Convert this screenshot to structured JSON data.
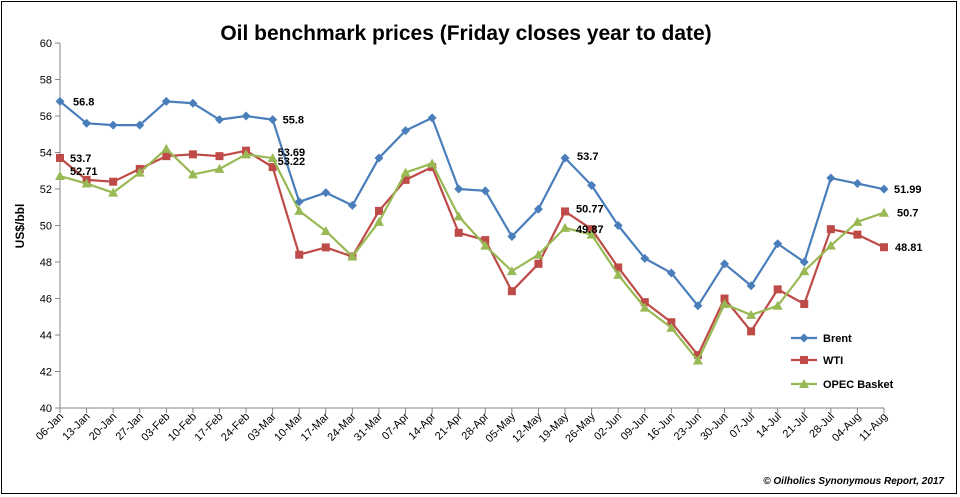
{
  "chart_data": {
    "type": "line",
    "title": "Oil benchmark prices (Friday closes year to date)",
    "ylabel": "US$/bbl",
    "xlabel": "",
    "ylim": [
      40,
      60
    ],
    "yticks": [
      40,
      42,
      44,
      46,
      48,
      50,
      52,
      54,
      56,
      58,
      60
    ],
    "grid": false,
    "legend_position": "right",
    "credit": "© Oilholics Synonymous Report, 2017",
    "categories": [
      "06-Jan",
      "13-Jan",
      "20-Jan",
      "27-Jan",
      "03-Feb",
      "10-Feb",
      "17-Feb",
      "24-Feb",
      "03-Mar",
      "10-Mar",
      "17-Mar",
      "24-Mar",
      "31-Mar",
      "07-Apr",
      "14-Apr",
      "21-Apr",
      "28-Apr",
      "05-May",
      "12-May",
      "19-May",
      "26-May",
      "02-Jun",
      "09-Jun",
      "16-Jun",
      "23-Jun",
      "30-Jun",
      "07-Jul",
      "14-Jul",
      "21-Jul",
      "28-Jul",
      "04-Aug",
      "11-Aug"
    ],
    "series": [
      {
        "name": "Brent",
        "color": "#4a7ebb",
        "marker": "diamond",
        "values": [
          56.8,
          55.6,
          55.5,
          55.5,
          56.8,
          56.7,
          55.8,
          56.0,
          55.8,
          51.3,
          51.8,
          51.1,
          53.7,
          55.2,
          55.9,
          52.0,
          51.9,
          49.4,
          50.9,
          53.7,
          52.2,
          50.0,
          48.2,
          47.4,
          45.6,
          47.9,
          46.7,
          49.0,
          48.0,
          52.6,
          52.3,
          51.99
        ],
        "labels": [
          {
            "index": 0,
            "text": "56.8"
          },
          {
            "index": 8,
            "text": "55.8"
          },
          {
            "index": 19,
            "text": "53.7"
          },
          {
            "index": 31,
            "text": "51.99"
          }
        ]
      },
      {
        "name": "WTI",
        "color": "#be4b48",
        "marker": "square",
        "values": [
          53.7,
          52.5,
          52.4,
          53.1,
          53.8,
          53.9,
          53.8,
          54.1,
          53.2,
          48.4,
          48.8,
          48.3,
          50.8,
          52.5,
          53.2,
          49.6,
          49.2,
          46.4,
          47.9,
          50.77,
          49.8,
          47.7,
          45.8,
          44.7,
          42.9,
          46.0,
          44.2,
          46.5,
          45.7,
          49.8,
          49.5,
          48.81
        ],
        "labels": [
          {
            "index": 0,
            "text": "53.7"
          },
          {
            "index": 8,
            "text": "53.22"
          },
          {
            "index": 19,
            "text": "50.77"
          },
          {
            "index": 31,
            "text": "48.81"
          }
        ]
      },
      {
        "name": "OPEC Basket",
        "color": "#98b954",
        "marker": "triangle",
        "values": [
          52.71,
          52.3,
          51.8,
          52.9,
          54.2,
          52.8,
          53.1,
          53.9,
          53.69,
          50.8,
          49.7,
          48.3,
          50.2,
          52.9,
          53.4,
          50.5,
          48.9,
          47.5,
          48.4,
          49.87,
          49.5,
          47.3,
          45.5,
          44.4,
          42.6,
          45.7,
          45.1,
          45.6,
          47.5,
          48.9,
          50.2,
          50.7
        ],
        "labels": [
          {
            "index": 0,
            "text": "52.71"
          },
          {
            "index": 8,
            "text": "53.69"
          },
          {
            "index": 19,
            "text": "49.87"
          },
          {
            "index": 31,
            "text": "50.7"
          }
        ]
      }
    ]
  }
}
